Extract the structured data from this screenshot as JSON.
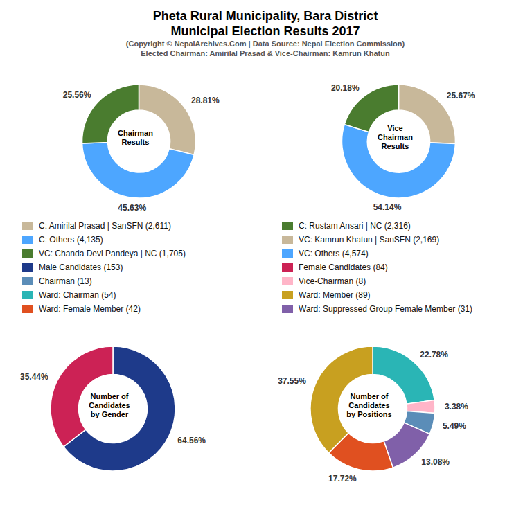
{
  "title": [
    "Pheta Rural Municipality, Bara District",
    "Municipal Election Results 2017"
  ],
  "subtitle": [
    "(Copyright © NepalArchives.Com | Data Source: Nepal Election Commission)",
    "Elected Chairman: Amirilal Prasad & Vice-Chairman: Kamrun Khatun"
  ],
  "chart_data": [
    {
      "type": "pie",
      "title": "Chairman\nResults",
      "values": [
        28.81,
        45.63,
        25.56
      ],
      "value_labels": [
        "28.81%",
        "45.63%",
        "25.56%"
      ],
      "colors": [
        "#c8b89a",
        "#4da6ff",
        "#4a7c2f"
      ],
      "data_labels": true
    },
    {
      "type": "pie",
      "title": "Vice\nChairman\nResults",
      "values": [
        25.67,
        54.14,
        20.18
      ],
      "value_labels": [
        "25.67%",
        "54.14%",
        "20.18%"
      ],
      "colors": [
        "#c8b89a",
        "#4da6ff",
        "#4a7c2f"
      ],
      "data_labels": true
    },
    {
      "type": "pie",
      "title": "Number of\nCandidates\nby Gender",
      "values": [
        64.56,
        35.44
      ],
      "value_labels": [
        "64.56%",
        "35.44%"
      ],
      "colors": [
        "#1e3a8a",
        "#cc2255"
      ],
      "data_labels": true
    },
    {
      "type": "pie",
      "title": "Number of\nCandidates\nby Positions",
      "values": [
        22.78,
        3.38,
        5.49,
        13.08,
        17.72,
        37.55
      ],
      "value_labels": [
        "22.78%",
        "3.38%",
        "5.49%",
        "13.08%",
        "17.72%",
        "37.55%"
      ],
      "colors": [
        "#2ab5b5",
        "#ffb5c8",
        "#5b8db8",
        "#8060a9",
        "#e05020",
        "#c8a020"
      ],
      "data_labels": true
    }
  ],
  "legend_items": [
    [
      {
        "name": "C: Amirilal Prasad | SanSFN (2,611)",
        "color": "#c8b89a"
      },
      {
        "name": "C: Others (4,135)",
        "color": "#4da6ff"
      },
      {
        "name": "VC: Chanda Devi Pandeya | NC (1,705)",
        "color": "#4a7c2f"
      },
      {
        "name": "Male Candidates (153)",
        "color": "#1e3a8a"
      },
      {
        "name": "Chairman (13)",
        "color": "#5b8db8"
      },
      {
        "name": "Ward: Chairman (54)",
        "color": "#2ab5b5"
      },
      {
        "name": "Ward: Female Member (42)",
        "color": "#e05020"
      }
    ],
    [
      {
        "name": "C: Rustam Ansari | NC (2,316)",
        "color": "#4a7c2f"
      },
      {
        "name": "VC: Kamrun Khatun | SanSFN (2,169)",
        "color": "#c8b89a"
      },
      {
        "name": "VC: Others (4,574)",
        "color": "#4da6ff"
      },
      {
        "name": "Female Candidates (84)",
        "color": "#cc2255"
      },
      {
        "name": "Vice-Chairman (8)",
        "color": "#ffb5c8"
      },
      {
        "name": "Ward: Member (89)",
        "color": "#c8a020"
      },
      {
        "name": "Ward: Suppressed Group Female Member (31)",
        "color": "#8060a9"
      }
    ]
  ]
}
